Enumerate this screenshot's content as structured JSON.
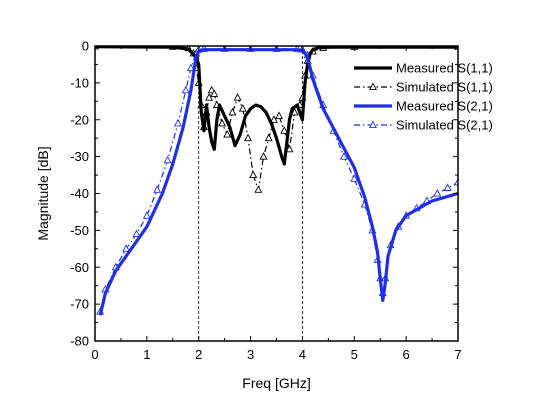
{
  "chart_data": {
    "type": "line",
    "xlabel": "Freq [GHz]",
    "ylabel": "Magnitude [dB]",
    "xlim": [
      0,
      7
    ],
    "ylim": [
      -80,
      0
    ],
    "xticks": [
      "0",
      "1",
      "2",
      "3",
      "4",
      "5",
      "6",
      "7"
    ],
    "yticks": [
      "0",
      "-10",
      "-20",
      "-30",
      "-40",
      "-50",
      "-60",
      "-70",
      "-80"
    ],
    "grid": false,
    "legend_position": "top-right",
    "reference_lines_x": [
      2.0,
      4.0
    ],
    "series": [
      {
        "name": "Measured S(1,1)",
        "color": "#000000",
        "style": "solid-thick",
        "marker": "none",
        "x": [
          0,
          1.5,
          1.8,
          1.95,
          2.0,
          2.05,
          2.1,
          2.15,
          2.2,
          2.25,
          2.3,
          2.35,
          2.4,
          2.5,
          2.6,
          2.7,
          2.8,
          2.9,
          3.0,
          3.1,
          3.2,
          3.3,
          3.4,
          3.5,
          3.6,
          3.65,
          3.7,
          3.75,
          3.8,
          3.9,
          4.0,
          4.05,
          4.1,
          4.15,
          4.2,
          4.3,
          4.5,
          5.0,
          7.0
        ],
        "y": [
          -0.2,
          -0.3,
          -0.8,
          -3,
          -5,
          -18,
          -23,
          -16,
          -22,
          -26,
          -28,
          -20,
          -16,
          -19,
          -22,
          -27,
          -24,
          -19,
          -17,
          -16,
          -16.5,
          -18,
          -21,
          -25,
          -30,
          -32,
          -26,
          -20,
          -17,
          -16,
          -20,
          -10,
          -5,
          -2,
          -1,
          -0.5,
          -0.3,
          -0.3,
          -0.3
        ]
      },
      {
        "name": "Simulated S(1,1)",
        "color": "#000000",
        "style": "dashdot",
        "marker": "triangle-open",
        "x": [
          0,
          1.5,
          1.8,
          1.9,
          1.95,
          2.0,
          2.05,
          2.1,
          2.15,
          2.2,
          2.25,
          2.3,
          2.35,
          2.45,
          2.55,
          2.65,
          2.75,
          2.85,
          2.95,
          3.05,
          3.15,
          3.25,
          3.35,
          3.45,
          3.55,
          3.65,
          3.75,
          3.85,
          3.95,
          4.0,
          4.05,
          4.1,
          4.2,
          4.4,
          5.0,
          7.0
        ],
        "y": [
          -0.1,
          -0.2,
          -0.6,
          -2,
          -6,
          -10,
          -16,
          -22,
          -18,
          -14,
          -12,
          -13,
          -16,
          -21,
          -24,
          -18,
          -14,
          -17,
          -25,
          -35,
          -39,
          -30,
          -25,
          -20,
          -19,
          -23,
          -28,
          -18,
          -16,
          -14,
          -8,
          -4,
          -1.5,
          -0.5,
          -0.2,
          -0.2
        ]
      },
      {
        "name": "Measured S(2,1)",
        "color": "#1f2fe6",
        "style": "solid-thick",
        "marker": "none",
        "x": [
          0.1,
          0.2,
          0.4,
          0.7,
          1.0,
          1.3,
          1.5,
          1.7,
          1.85,
          1.95,
          2.0,
          2.1,
          2.5,
          3.0,
          3.5,
          3.9,
          4.0,
          4.05,
          4.1,
          4.2,
          4.4,
          4.7,
          5.0,
          5.2,
          5.35,
          5.45,
          5.5,
          5.55,
          5.6,
          5.65,
          5.8,
          6.0,
          6.5,
          7.0
        ],
        "y": [
          -73,
          -67,
          -61,
          -55,
          -49,
          -40,
          -32,
          -22,
          -12,
          -3,
          -1.5,
          -1,
          -1,
          -1,
          -1,
          -1,
          -1.2,
          -2,
          -3,
          -9,
          -17,
          -25,
          -33,
          -41,
          -49,
          -56,
          -63,
          -69,
          -64,
          -57,
          -50,
          -46,
          -42,
          -40
        ]
      },
      {
        "name": "Simulated S(2,1)",
        "color": "#1f2fe6",
        "style": "dashdot",
        "marker": "triangle-open",
        "x": [
          0.1,
          0.2,
          0.4,
          0.6,
          0.8,
          1.0,
          1.2,
          1.4,
          1.6,
          1.75,
          1.85,
          1.95,
          2.0,
          2.1,
          2.5,
          3.0,
          3.5,
          3.9,
          4.0,
          4.1,
          4.2,
          4.4,
          4.6,
          4.8,
          5.0,
          5.2,
          5.35,
          5.45,
          5.5,
          5.55,
          5.6,
          5.7,
          5.85,
          6.0,
          6.2,
          6.4,
          6.6,
          6.8,
          7.0
        ],
        "y": [
          -72,
          -66,
          -60,
          -55,
          -51,
          -46,
          -39,
          -31,
          -21,
          -12,
          -6,
          -2,
          -1,
          -0.8,
          -0.8,
          -0.8,
          -0.8,
          -0.8,
          -1,
          -2.5,
          -8,
          -16,
          -23,
          -30,
          -36,
          -43,
          -50,
          -58,
          -63,
          -67,
          -63,
          -54,
          -49,
          -46,
          -44,
          -42,
          -40,
          -38.5,
          -37
        ]
      }
    ]
  }
}
